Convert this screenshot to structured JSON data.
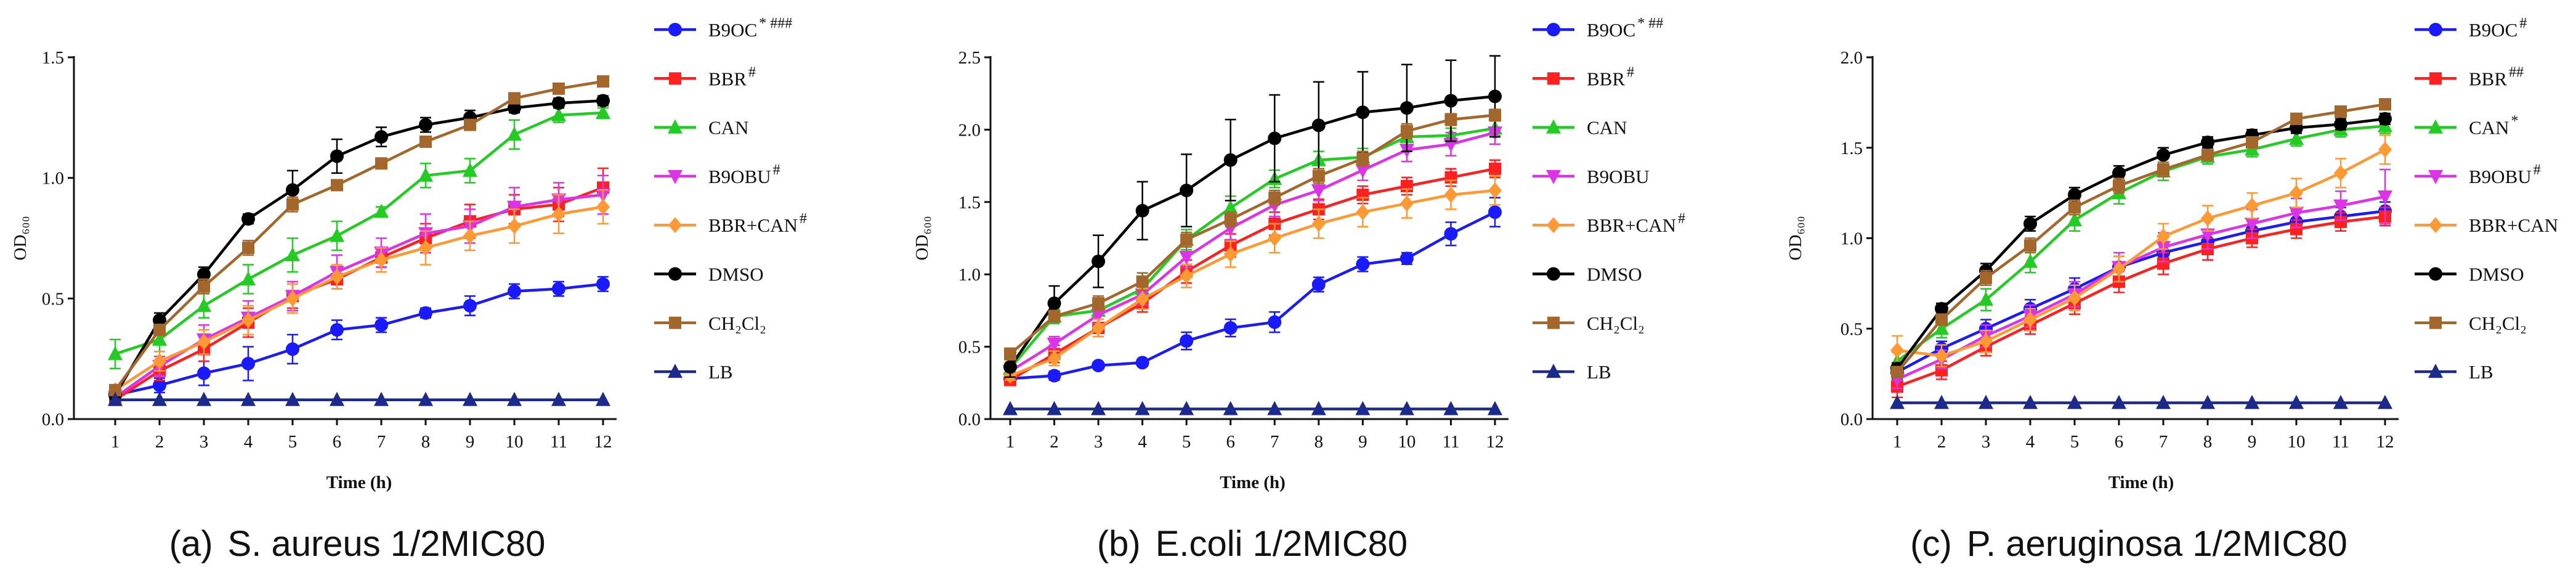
{
  "chart_data": [
    {
      "type": "line",
      "panel_label": "(a)",
      "caption": "S. aureus 1/2MIC80",
      "xlabel": "Time (h)",
      "ylabel": "OD₆₀₀",
      "x": [
        1,
        2,
        3,
        4,
        5,
        6,
        7,
        8,
        9,
        10,
        11,
        12
      ],
      "ylim": [
        0,
        1.5
      ],
      "yticks": [
        0,
        0.5,
        1.0,
        1.5
      ],
      "ytick_labels": [
        "0.0",
        "0.5",
        "1.0",
        "1.5"
      ],
      "grid": false,
      "legend_position": "right",
      "series": [
        {
          "name": "B9OC",
          "mark": "* ###",
          "color": "#1a1aff",
          "marker": "circle",
          "values": [
            0.1,
            0.14,
            0.19,
            0.23,
            0.29,
            0.37,
            0.39,
            0.44,
            0.47,
            0.53,
            0.54,
            0.56
          ],
          "errors": [
            0.02,
            0.03,
            0.05,
            0.07,
            0.06,
            0.04,
            0.03,
            0.02,
            0.04,
            0.03,
            0.03,
            0.03
          ]
        },
        {
          "name": "BBR",
          "mark": "#",
          "color": "#ff2020",
          "marker": "square",
          "values": [
            0.08,
            0.2,
            0.29,
            0.4,
            0.51,
            0.58,
            0.67,
            0.75,
            0.82,
            0.87,
            0.89,
            0.96
          ],
          "errors": [
            0.02,
            0.04,
            0.05,
            0.06,
            0.05,
            0.04,
            0.04,
            0.06,
            0.07,
            0.06,
            0.07,
            0.08
          ]
        },
        {
          "name": "CAN",
          "mark": "",
          "color": "#22cc22",
          "marker": "triangle-up",
          "values": [
            0.27,
            0.33,
            0.47,
            0.58,
            0.68,
            0.76,
            0.86,
            1.01,
            1.03,
            1.18,
            1.26,
            1.27
          ],
          "errors": [
            0.06,
            0.05,
            0.05,
            0.06,
            0.07,
            0.06,
            0.02,
            0.05,
            0.05,
            0.06,
            0.03,
            0.02
          ]
        },
        {
          "name": "B9OBU",
          "mark": "#",
          "color": "#dd33e6",
          "marker": "triangle-down",
          "values": [
            0.09,
            0.22,
            0.33,
            0.42,
            0.51,
            0.61,
            0.69,
            0.77,
            0.8,
            0.88,
            0.91,
            0.93
          ],
          "errors": [
            0.02,
            0.04,
            0.06,
            0.07,
            0.06,
            0.07,
            0.06,
            0.08,
            0.07,
            0.08,
            0.07,
            0.08
          ]
        },
        {
          "name": "BBR+CAN",
          "mark": "#",
          "color": "#ff9933",
          "marker": "diamond",
          "values": [
            0.12,
            0.24,
            0.32,
            0.41,
            0.5,
            0.59,
            0.66,
            0.71,
            0.76,
            0.8,
            0.85,
            0.88
          ],
          "errors": [
            0.02,
            0.04,
            0.05,
            0.06,
            0.06,
            0.05,
            0.05,
            0.07,
            0.06,
            0.07,
            0.08,
            0.07
          ]
        },
        {
          "name": "DMSO",
          "mark": "",
          "color": "#000000",
          "marker": "circle",
          "values": [
            0.1,
            0.41,
            0.6,
            0.83,
            0.95,
            1.09,
            1.17,
            1.22,
            1.25,
            1.29,
            1.31,
            1.32
          ],
          "errors": [
            0.02,
            0.03,
            0.03,
            0.02,
            0.08,
            0.07,
            0.04,
            0.03,
            0.03,
            0.02,
            0.02,
            0.02
          ]
        },
        {
          "name": "CH₂Cl₂",
          "mark": "",
          "color": "#a3672b",
          "marker": "square",
          "values": [
            0.12,
            0.37,
            0.55,
            0.71,
            0.89,
            0.97,
            1.06,
            1.15,
            1.22,
            1.33,
            1.37,
            1.4
          ],
          "errors": [
            0.02,
            0.02,
            0.03,
            0.03,
            0.03,
            0.02,
            0.02,
            0.02,
            0.02,
            0.02,
            0.02,
            0.02
          ]
        },
        {
          "name": "LB",
          "mark": "",
          "color": "#1c2a8c",
          "marker": "triangle-up",
          "values": [
            0.08,
            0.08,
            0.08,
            0.08,
            0.08,
            0.08,
            0.08,
            0.08,
            0.08,
            0.08,
            0.08,
            0.08
          ]
        }
      ]
    },
    {
      "type": "line",
      "panel_label": "(b)",
      "caption": "E.coli 1/2MIC80",
      "xlabel": "Time (h)",
      "ylabel": "OD₆₀₀",
      "x": [
        1,
        2,
        3,
        4,
        5,
        6,
        7,
        8,
        9,
        10,
        11,
        12
      ],
      "ylim": [
        0,
        2.5
      ],
      "yticks": [
        0,
        0.5,
        1.0,
        1.5,
        2.0,
        2.5
      ],
      "ytick_labels": [
        "0.0",
        "0.5",
        "1.0",
        "1.5",
        "2.0",
        "2.5"
      ],
      "grid": false,
      "legend_position": "right",
      "series": [
        {
          "name": "B9OC",
          "mark": "* ##",
          "color": "#1a1aff",
          "marker": "circle",
          "values": [
            0.28,
            0.3,
            0.37,
            0.39,
            0.54,
            0.63,
            0.67,
            0.93,
            1.07,
            1.11,
            1.28,
            1.43
          ],
          "errors": [
            0.03,
            0.03,
            0.02,
            0.02,
            0.06,
            0.06,
            0.07,
            0.05,
            0.05,
            0.04,
            0.08,
            0.1
          ]
        },
        {
          "name": "BBR",
          "mark": "#",
          "color": "#ff2020",
          "marker": "square",
          "values": [
            0.27,
            0.45,
            0.63,
            0.8,
            1.02,
            1.2,
            1.35,
            1.45,
            1.55,
            1.61,
            1.67,
            1.73
          ],
          "errors": [
            0.03,
            0.06,
            0.06,
            0.06,
            0.08,
            0.08,
            0.08,
            0.07,
            0.06,
            0.06,
            0.06,
            0.06
          ]
        },
        {
          "name": "CAN",
          "mark": "",
          "color": "#22cc22",
          "marker": "triangle-up",
          "values": [
            0.35,
            0.71,
            0.75,
            0.9,
            1.24,
            1.46,
            1.66,
            1.79,
            1.81,
            1.95,
            1.96,
            2.01
          ],
          "errors": [
            0.04,
            0.05,
            0.06,
            0.06,
            0.07,
            0.08,
            0.06,
            0.06,
            0.06,
            0.06,
            0.05,
            0.05
          ]
        },
        {
          "name": "B9OBU",
          "mark": "",
          "color": "#dd33e6",
          "marker": "triangle-down",
          "values": [
            0.33,
            0.52,
            0.72,
            0.86,
            1.12,
            1.32,
            1.48,
            1.58,
            1.72,
            1.86,
            1.9,
            1.98
          ],
          "errors": [
            0.03,
            0.05,
            0.06,
            0.07,
            0.07,
            0.08,
            0.08,
            0.07,
            0.07,
            0.08,
            0.08,
            0.08
          ]
        },
        {
          "name": "BBR+CAN",
          "mark": "#",
          "color": "#ff9933",
          "marker": "diamond",
          "values": [
            0.3,
            0.42,
            0.63,
            0.83,
            0.99,
            1.14,
            1.25,
            1.35,
            1.43,
            1.49,
            1.55,
            1.58
          ],
          "errors": [
            0.03,
            0.05,
            0.06,
            0.07,
            0.08,
            0.09,
            0.1,
            0.1,
            0.1,
            0.1,
            0.1,
            0.1
          ]
        },
        {
          "name": "DMSO",
          "mark": "",
          "color": "#000000",
          "marker": "circle",
          "values": [
            0.36,
            0.8,
            1.09,
            1.44,
            1.58,
            1.79,
            1.94,
            2.03,
            2.12,
            2.15,
            2.2,
            2.23
          ],
          "errors": [
            0.07,
            0.12,
            0.18,
            0.2,
            0.25,
            0.28,
            0.3,
            0.3,
            0.28,
            0.3,
            0.28,
            0.28
          ]
        },
        {
          "name": "CH₂Cl₂",
          "mark": "",
          "color": "#a3672b",
          "marker": "square",
          "values": [
            0.45,
            0.71,
            0.8,
            0.95,
            1.24,
            1.38,
            1.53,
            1.68,
            1.8,
            1.99,
            2.07,
            2.1
          ],
          "errors": [
            0.04,
            0.04,
            0.05,
            0.06,
            0.05,
            0.05,
            0.05,
            0.05,
            0.05,
            0.05,
            0.04,
            0.04
          ]
        },
        {
          "name": "LB",
          "mark": "",
          "color": "#1c2a8c",
          "marker": "triangle-up",
          "values": [
            0.07,
            0.07,
            0.07,
            0.07,
            0.07,
            0.07,
            0.07,
            0.07,
            0.07,
            0.07,
            0.07,
            0.07
          ]
        }
      ]
    },
    {
      "type": "line",
      "panel_label": "(c)",
      "caption": "P. aeruginosa 1/2MIC80",
      "xlabel": "Time (h)",
      "ylabel": "OD₆₀₀",
      "x": [
        1,
        2,
        3,
        4,
        5,
        6,
        7,
        8,
        9,
        10,
        11,
        12
      ],
      "ylim": [
        0,
        2.0
      ],
      "yticks": [
        0,
        0.5,
        1.0,
        1.5,
        2.0
      ],
      "ytick_labels": [
        "0.0",
        "0.5",
        "1.0",
        "1.5",
        "2.0"
      ],
      "grid": false,
      "legend_position": "right",
      "series": [
        {
          "name": "B9OC",
          "mark": "#",
          "color": "#1a1aff",
          "marker": "circle",
          "values": [
            0.26,
            0.39,
            0.5,
            0.61,
            0.72,
            0.84,
            0.92,
            0.98,
            1.04,
            1.09,
            1.12,
            1.15
          ],
          "errors": [
            0.04,
            0.04,
            0.05,
            0.05,
            0.06,
            0.06,
            0.06,
            0.06,
            0.06,
            0.06,
            0.05,
            0.05
          ]
        },
        {
          "name": "BBR",
          "mark": "##",
          "color": "#ff2020",
          "marker": "square",
          "values": [
            0.18,
            0.27,
            0.4,
            0.52,
            0.64,
            0.76,
            0.86,
            0.94,
            1.0,
            1.05,
            1.09,
            1.12
          ],
          "errors": [
            0.06,
            0.05,
            0.05,
            0.05,
            0.06,
            0.06,
            0.06,
            0.06,
            0.05,
            0.05,
            0.05,
            0.05
          ]
        },
        {
          "name": "CAN",
          "mark": "*",
          "color": "#22cc22",
          "marker": "triangle-up",
          "values": [
            0.32,
            0.5,
            0.66,
            0.87,
            1.1,
            1.25,
            1.37,
            1.45,
            1.49,
            1.55,
            1.6,
            1.62
          ],
          "errors": [
            0.05,
            0.05,
            0.06,
            0.06,
            0.06,
            0.06,
            0.05,
            0.04,
            0.04,
            0.04,
            0.04,
            0.04
          ]
        },
        {
          "name": "B9OBU",
          "mark": "#",
          "color": "#dd33e6",
          "marker": "triangle-down",
          "values": [
            0.22,
            0.33,
            0.46,
            0.57,
            0.69,
            0.84,
            0.95,
            1.02,
            1.08,
            1.14,
            1.18,
            1.23
          ],
          "errors": [
            0.05,
            0.05,
            0.06,
            0.06,
            0.07,
            0.08,
            0.08,
            0.08,
            0.08,
            0.08,
            0.08,
            0.15
          ]
        },
        {
          "name": "BBR+CAN",
          "mark": "",
          "color": "#ff9933",
          "marker": "diamond",
          "values": [
            0.38,
            0.35,
            0.43,
            0.55,
            0.67,
            0.83,
            1.01,
            1.11,
            1.18,
            1.25,
            1.36,
            1.49
          ],
          "errors": [
            0.08,
            0.06,
            0.06,
            0.06,
            0.07,
            0.07,
            0.07,
            0.07,
            0.07,
            0.08,
            0.08,
            0.08
          ]
        },
        {
          "name": "DMSO",
          "mark": "",
          "color": "#000000",
          "marker": "circle",
          "values": [
            0.28,
            0.61,
            0.82,
            1.08,
            1.24,
            1.36,
            1.46,
            1.53,
            1.57,
            1.61,
            1.63,
            1.66
          ],
          "errors": [
            0.03,
            0.03,
            0.04,
            0.04,
            0.04,
            0.04,
            0.04,
            0.03,
            0.03,
            0.03,
            0.03,
            0.03
          ]
        },
        {
          "name": "CH₂Cl₂",
          "mark": "",
          "color": "#a3672b",
          "marker": "square",
          "values": [
            0.26,
            0.55,
            0.78,
            0.96,
            1.17,
            1.29,
            1.38,
            1.46,
            1.53,
            1.66,
            1.7,
            1.74
          ],
          "errors": [
            0.03,
            0.03,
            0.04,
            0.04,
            0.04,
            0.04,
            0.04,
            0.03,
            0.03,
            0.03,
            0.03,
            0.03
          ]
        },
        {
          "name": "LB",
          "mark": "",
          "color": "#1c2a8c",
          "marker": "triangle-up",
          "values": [
            0.09,
            0.09,
            0.09,
            0.09,
            0.09,
            0.09,
            0.09,
            0.09,
            0.09,
            0.09,
            0.09,
            0.09
          ]
        }
      ]
    }
  ]
}
